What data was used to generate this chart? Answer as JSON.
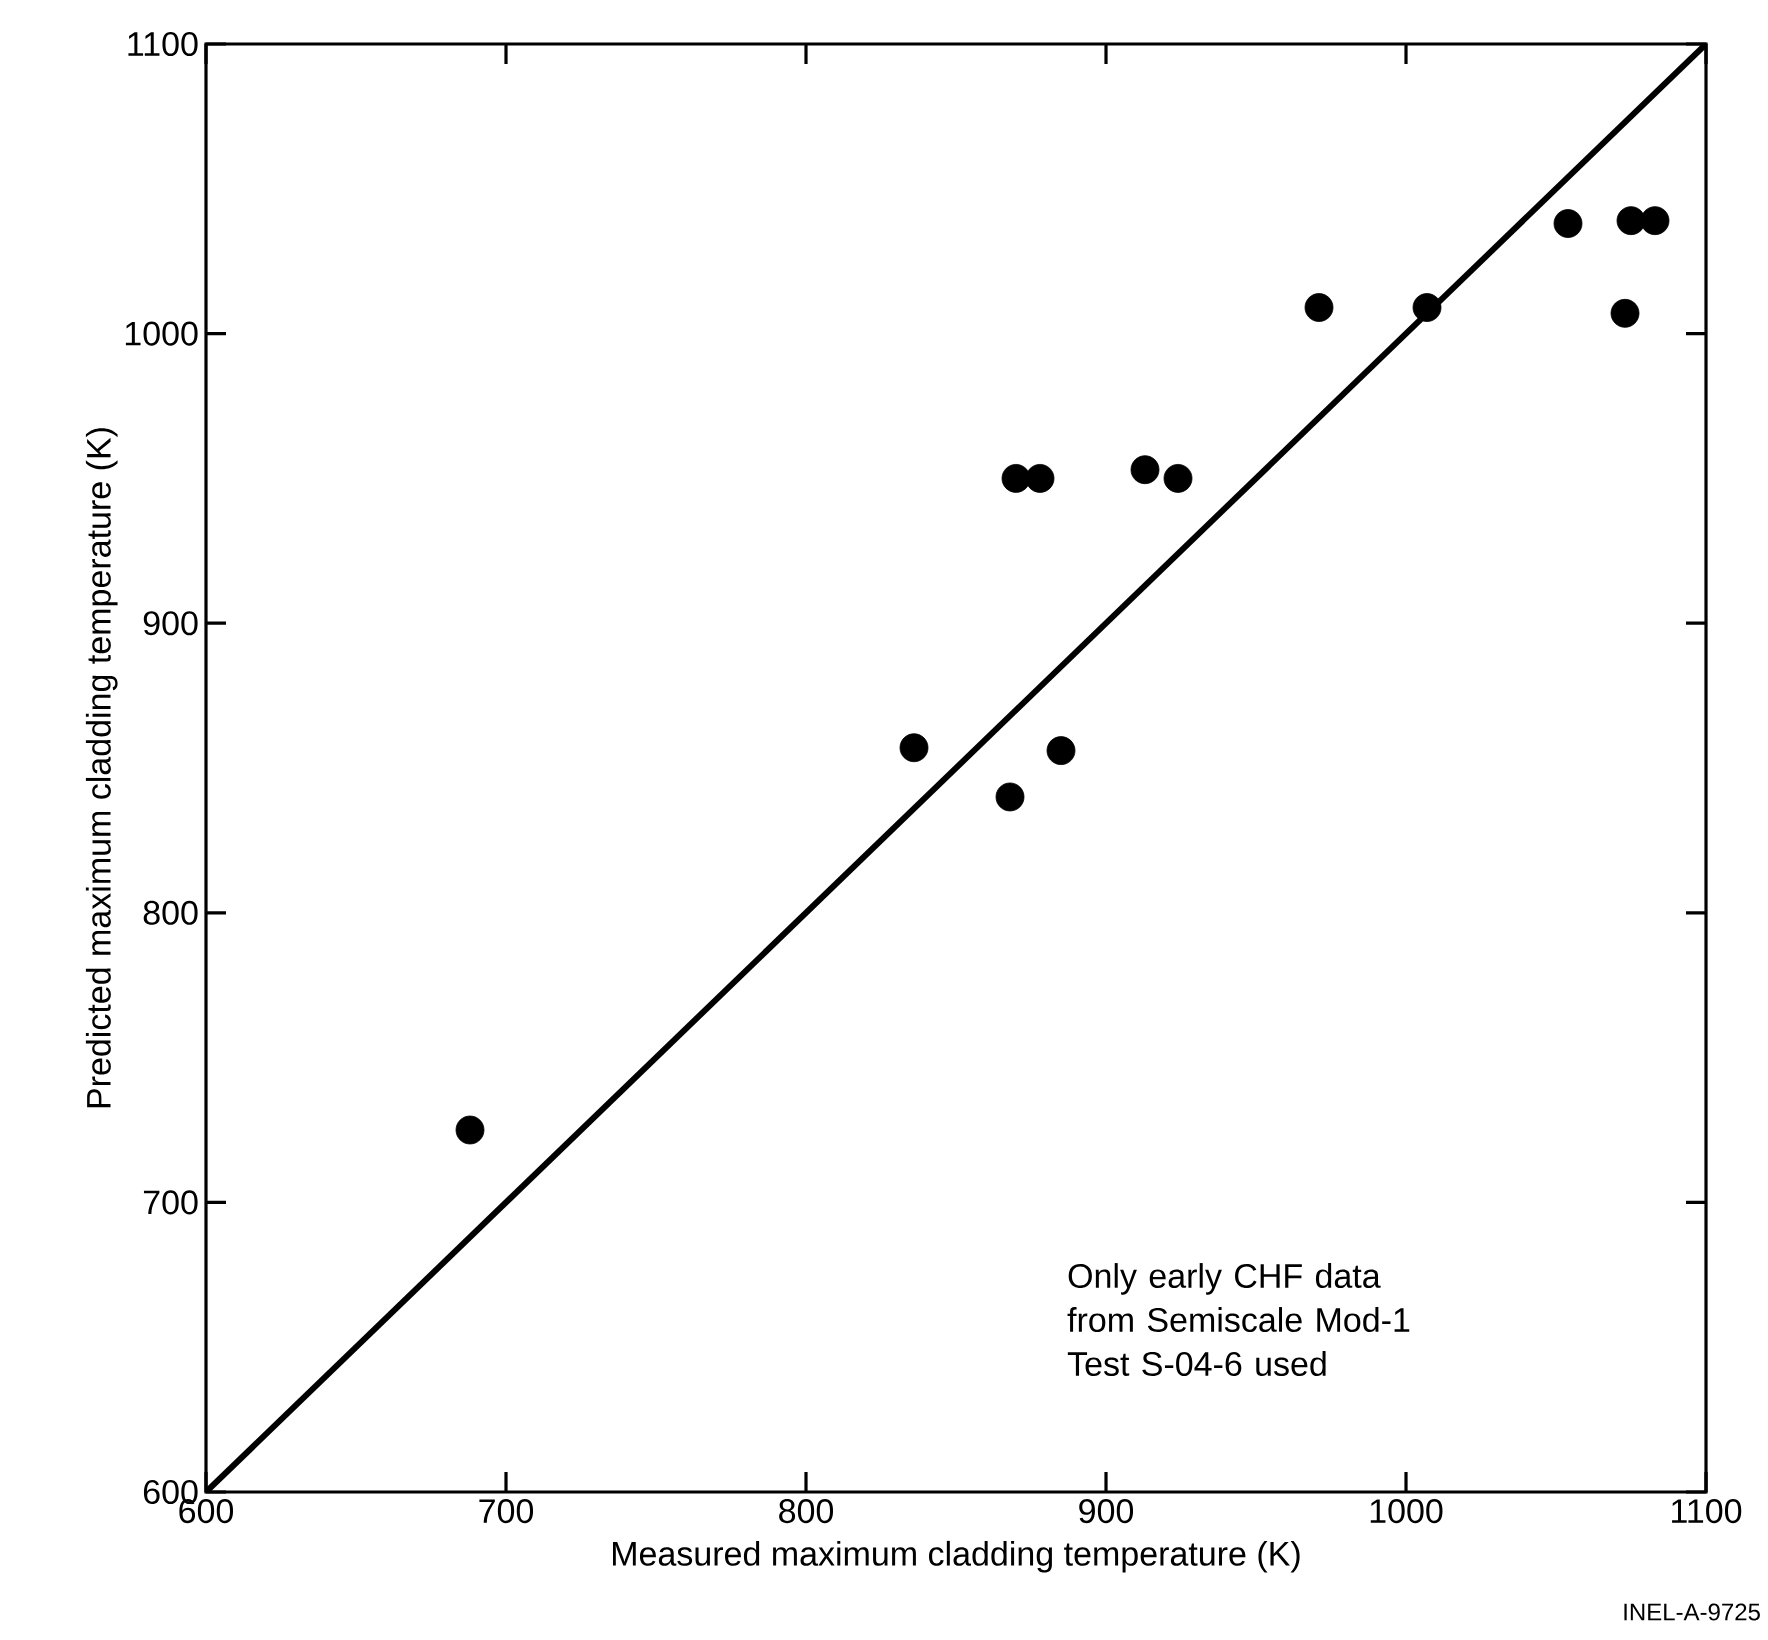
{
  "chart_data": {
    "type": "scatter",
    "xlabel": "Measured maximum cladding temperature (K)",
    "ylabel": "Predicted maximum cladding temperature (K)",
    "xlim": [
      600,
      1100
    ],
    "ylim": [
      600,
      1100
    ],
    "xticks": [
      600,
      700,
      800,
      900,
      1000,
      1100
    ],
    "yticks": [
      600,
      700,
      800,
      900,
      1000,
      1100
    ],
    "grid": false,
    "marker": "circle",
    "series": [
      {
        "color": "#000000",
        "x": [
          688,
          836,
          868,
          870,
          878,
          885,
          913,
          924,
          971,
          1007,
          1054,
          1073,
          1075,
          1083
        ],
        "values": [
          725,
          857,
          840,
          950,
          950,
          856,
          953,
          950,
          1009,
          1009,
          1038,
          1007,
          1039,
          1039
        ]
      },
      {
        "type": "line",
        "color": "#000000",
        "marker": "none",
        "line_style": "solid",
        "x": [
          600,
          1100
        ],
        "values": [
          600,
          1100
        ]
      }
    ],
    "annotations": [
      {
        "text": "Only early CHF data from Semiscale Mod-1 Test S-04-6 used"
      },
      "INEL-A-9725"
    ]
  }
}
